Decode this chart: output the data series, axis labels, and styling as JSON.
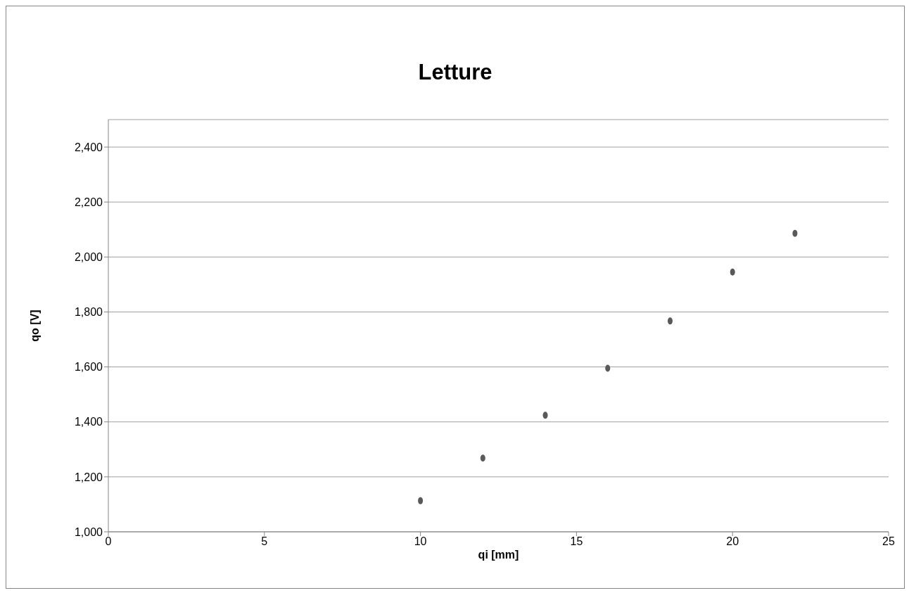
{
  "chart_data": {
    "type": "scatter",
    "title": "Letture",
    "xlabel": "qi [mm]",
    "ylabel": "qo [V]",
    "x": [
      10,
      12,
      14,
      16,
      18,
      20,
      22
    ],
    "values": [
      1113,
      1268,
      1424,
      1595,
      1767,
      1945,
      2086
    ],
    "color": "#595959",
    "marker": "circle",
    "grid": "y",
    "legend": false,
    "xlim": [
      0,
      25
    ],
    "xticks": [
      0,
      5,
      10,
      15,
      20,
      25
    ],
    "ylim": [
      1000,
      2500
    ],
    "yticks": [
      {
        "value": 1000,
        "label": "1,000"
      },
      {
        "value": 1200,
        "label": "1,200"
      },
      {
        "value": 1400,
        "label": "1,400"
      },
      {
        "value": 1600,
        "label": "1,600"
      },
      {
        "value": 1800,
        "label": "1,800"
      },
      {
        "value": 2000,
        "label": "2,000"
      },
      {
        "value": 2200,
        "label": "2,200"
      },
      {
        "value": 2400,
        "label": "2,400"
      }
    ]
  }
}
